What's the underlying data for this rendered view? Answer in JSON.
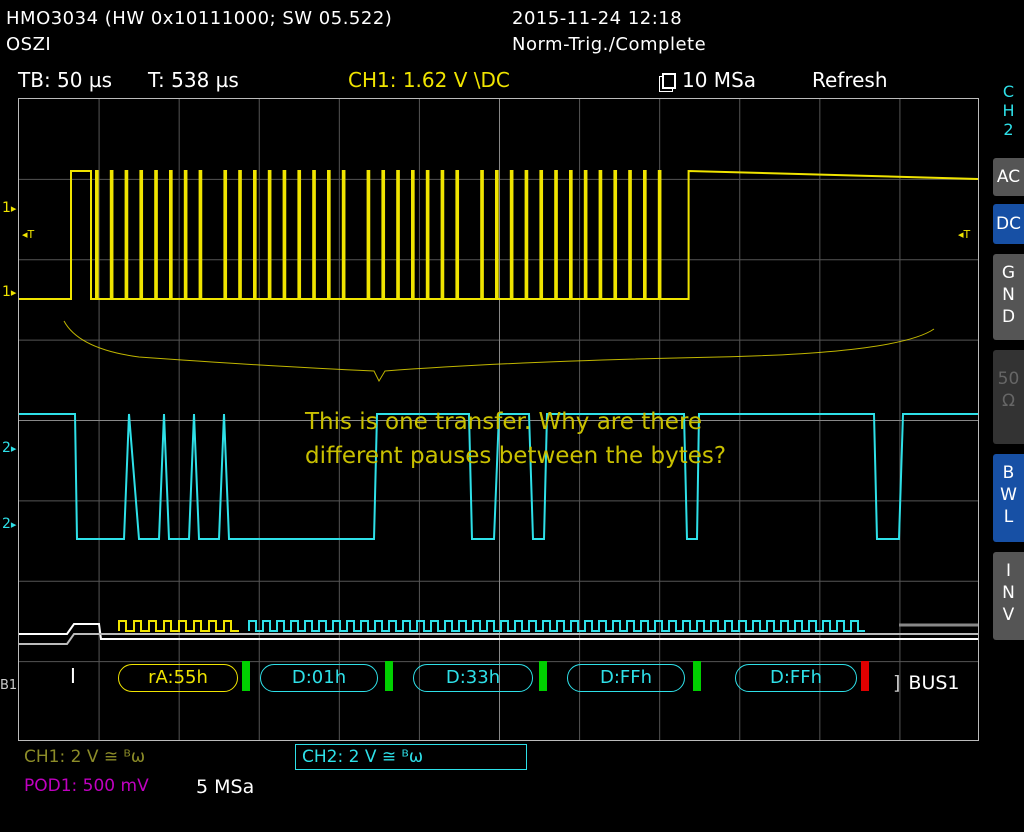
{
  "device": {
    "model": "HMO3034 (HW 0x10111000; SW 05.522)",
    "mode": "OSZI",
    "datetime": "2015-11-24 12:18",
    "trigger_status": "Norm-Trig./Complete"
  },
  "topbar": {
    "timebase": "TB: 50 µs",
    "trigger_time": "T: 538 µs",
    "ch1_trigger": "CH1: 1.62 V \\DC",
    "sample_rate": "10 MSa",
    "acq_mode": "Refresh"
  },
  "side_menu": {
    "title": "CH2",
    "ac": "AC",
    "dc": "DC",
    "gnd": "GND",
    "fifty": "50Ω",
    "bwl": "BWL",
    "inv": "INV"
  },
  "markers": {
    "ch1": "1",
    "ch2": "2",
    "bus": "B1",
    "trig_left": "◂T",
    "trig_right": "◂T"
  },
  "annotation": {
    "line1": "This is one transfer. Why are there",
    "line2": "different pauses between the bytes?"
  },
  "bus": {
    "label": "BUS1",
    "frames": [
      "rA:55h",
      "D:01h",
      "D:33h",
      "D:FFh",
      "D:FFh"
    ]
  },
  "bottom": {
    "ch1": "CH1: 2 V ≅ ᴮѡ",
    "ch2": "CH2: 2 V ≅ ᴮѡ",
    "pod1": "POD1: 500 mV",
    "pod_rate": "5 MSa"
  },
  "colors": {
    "ch1": "#f0e400",
    "ch2": "#2ee0e8",
    "ack": "#00d000",
    "nack": "#e00000",
    "annotation": "#c9c000",
    "pod": "#c000c0",
    "accent": "#1750a5"
  }
}
